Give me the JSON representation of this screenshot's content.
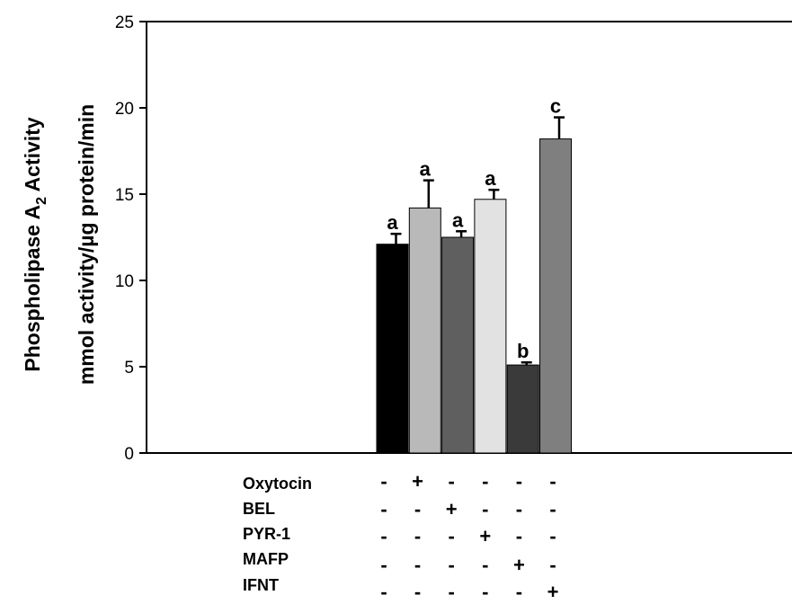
{
  "chart_data": {
    "type": "bar",
    "ylabel_line1": "Phospholipase A",
    "ylabel_subscript": "2",
    "ylabel_line1_tail": " Activity",
    "ylabel_line2": "mmol activity/µg protein/min",
    "ylim": [
      0,
      25
    ],
    "yticks": [
      0,
      5,
      10,
      15,
      20,
      25
    ],
    "grid": false,
    "bars": [
      {
        "value": 12.1,
        "error": 0.6,
        "letter": "a",
        "color": "#000000"
      },
      {
        "value": 14.2,
        "error": 1.6,
        "letter": "a",
        "color": "#b9b9b9"
      },
      {
        "value": 12.5,
        "error": 0.35,
        "letter": "a",
        "color": "#5f5f5f"
      },
      {
        "value": 14.7,
        "error": 0.55,
        "letter": "a",
        "color": "#e2e2e2"
      },
      {
        "value": 5.1,
        "error": 0.15,
        "letter": "b",
        "color": "#3a3a3a"
      },
      {
        "value": 18.2,
        "error": 1.25,
        "letter": "c",
        "color": "#7f7f7f"
      }
    ],
    "treatments": [
      {
        "name": "Oxytocin",
        "signs": [
          "-",
          "+",
          "-",
          "-",
          "-",
          "-"
        ]
      },
      {
        "name": "BEL",
        "signs": [
          "-",
          "-",
          "+",
          "-",
          "-",
          "-"
        ]
      },
      {
        "name": "PYR-1",
        "signs": [
          "-",
          "-",
          "-",
          "+",
          "-",
          "-"
        ]
      },
      {
        "name": "MAFP",
        "signs": [
          "-",
          "-",
          "-",
          "-",
          "+",
          "-"
        ]
      },
      {
        "name": "IFNT",
        "signs": [
          "-",
          "-",
          "-",
          "-",
          "-",
          "+"
        ]
      }
    ]
  }
}
